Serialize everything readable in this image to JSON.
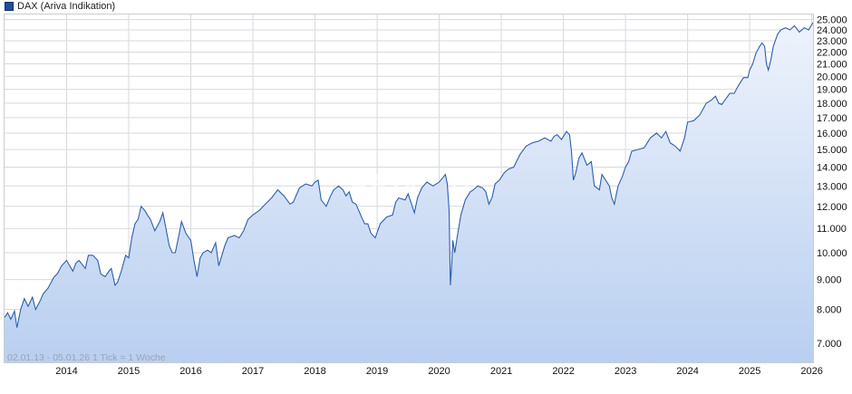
{
  "chart_data": {
    "type": "area",
    "legend": {
      "label": "DAX (Ariva Indikation)",
      "color": "#1f4e9c",
      "position": "top-left"
    },
    "info_text": "02.01.13 - 05.01.26    1 Tick = 1 Woche",
    "watermark": "ARIVA.DE",
    "x_ticks": [
      "2014",
      "2015",
      "2016",
      "2017",
      "2018",
      "2019",
      "2020",
      "2021",
      "2022",
      "2023",
      "2024",
      "2025",
      "2026"
    ],
    "y_ticks": [
      "7.000",
      "8.000",
      "9.000",
      "10.000",
      "11.000",
      "12.000",
      "13.000",
      "14.000",
      "15.000",
      "16.000",
      "17.000",
      "18.000",
      "19.000",
      "20.000",
      "21.000",
      "22.000",
      "23.000",
      "24.000",
      "25.000"
    ],
    "y_scale": "log",
    "ylim": [
      6500,
      25500
    ],
    "xlim": [
      2013.0,
      2026.02
    ],
    "grid": true,
    "colors": {
      "line": "#2d5fae",
      "fill_top": "#eef3fc",
      "fill_bottom": "#b9cff0",
      "grid": "#d6d9de"
    },
    "series": [
      {
        "x": [
          2013.0,
          2013.05,
          2013.1,
          2013.16,
          2013.2,
          2013.26,
          2013.32,
          2013.38,
          2013.45,
          2013.5,
          2013.58,
          2013.62,
          2013.7,
          2013.75,
          2013.8,
          2013.85,
          2013.92,
          2014.0,
          2014.05,
          2014.1,
          2014.15,
          2014.2,
          2014.3,
          2014.35,
          2014.42,
          2014.5,
          2014.55,
          2014.62,
          2014.68,
          2014.72,
          2014.78,
          2014.82,
          2014.88,
          2014.95,
          2015.0,
          2015.05,
          2015.1,
          2015.15,
          2015.2,
          2015.26,
          2015.3,
          2015.35,
          2015.42,
          2015.5,
          2015.55,
          2015.6,
          2015.65,
          2015.7,
          2015.75,
          2015.8,
          2015.85,
          2015.92,
          2016.0,
          2016.05,
          2016.1,
          2016.15,
          2016.2,
          2016.27,
          2016.33,
          2016.4,
          2016.45,
          2016.5,
          2016.55,
          2016.6,
          2016.7,
          2016.78,
          2016.85,
          2016.92,
          2017.0,
          2017.1,
          2017.2,
          2017.3,
          2017.4,
          2017.5,
          2017.6,
          2017.65,
          2017.75,
          2017.85,
          2017.95,
          2018.0,
          2018.05,
          2018.1,
          2018.18,
          2018.25,
          2018.3,
          2018.38,
          2018.45,
          2018.5,
          2018.55,
          2018.6,
          2018.66,
          2018.75,
          2018.8,
          2018.85,
          2018.9,
          2018.97,
          2019.05,
          2019.15,
          2019.25,
          2019.3,
          2019.35,
          2019.45,
          2019.5,
          2019.6,
          2019.65,
          2019.72,
          2019.8,
          2019.9,
          2020.0,
          2020.05,
          2020.1,
          2020.13,
          2020.16,
          2020.18,
          2020.2,
          2020.22,
          2020.25,
          2020.3,
          2020.35,
          2020.42,
          2020.5,
          2020.55,
          2020.62,
          2020.7,
          2020.75,
          2020.8,
          2020.85,
          2020.9,
          2020.97,
          2021.05,
          2021.12,
          2021.2,
          2021.3,
          2021.4,
          2021.5,
          2021.6,
          2021.7,
          2021.8,
          2021.85,
          2021.9,
          2021.97,
          2022.05,
          2022.1,
          2022.13,
          2022.16,
          2022.2,
          2022.25,
          2022.3,
          2022.38,
          2022.45,
          2022.5,
          2022.58,
          2022.62,
          2022.68,
          2022.74,
          2022.78,
          2022.82,
          2022.88,
          2022.95,
          2023.0,
          2023.05,
          2023.1,
          2023.2,
          2023.3,
          2023.4,
          2023.5,
          2023.58,
          2023.65,
          2023.72,
          2023.8,
          2023.88,
          2023.95,
          2024.0,
          2024.1,
          2024.2,
          2024.3,
          2024.38,
          2024.45,
          2024.5,
          2024.55,
          2024.6,
          2024.68,
          2024.75,
          2024.82,
          2024.9,
          2024.97,
          2025.0,
          2025.05,
          2025.1,
          2025.16,
          2025.2,
          2025.24,
          2025.27,
          2025.3,
          2025.34,
          2025.38,
          2025.45,
          2025.5,
          2025.58,
          2025.65,
          2025.72,
          2025.8,
          2025.88,
          2025.95,
          2026.02
        ],
        "y": [
          7750,
          7900,
          7700,
          7950,
          7450,
          8000,
          8350,
          8100,
          8400,
          8000,
          8300,
          8500,
          8700,
          8900,
          9100,
          9200,
          9500,
          9700,
          9500,
          9300,
          9600,
          9700,
          9400,
          9900,
          9900,
          9700,
          9200,
          9100,
          9300,
          9400,
          8800,
          8900,
          9300,
          9900,
          9800,
          10600,
          11200,
          11400,
          12000,
          11800,
          11600,
          11400,
          10900,
          11300,
          11700,
          11000,
          10300,
          10000,
          10000,
          10600,
          11300,
          10800,
          10500,
          9700,
          9100,
          9800,
          10000,
          10100,
          10000,
          10400,
          9500,
          9900,
          10300,
          10600,
          10700,
          10600,
          10900,
          11400,
          11600,
          11800,
          12100,
          12400,
          12800,
          12500,
          12100,
          12200,
          12900,
          13100,
          13000,
          13200,
          13300,
          12300,
          12000,
          12500,
          12800,
          13000,
          12800,
          12500,
          12700,
          12200,
          12100,
          11500,
          11200,
          11200,
          10800,
          10600,
          11200,
          11500,
          11600,
          12200,
          12400,
          12300,
          12600,
          11700,
          12400,
          12900,
          13200,
          13000,
          13200,
          13400,
          13600,
          13100,
          11800,
          8800,
          9500,
          10500,
          10000,
          10800,
          11600,
          12300,
          12700,
          12800,
          13000,
          12900,
          12700,
          12100,
          12400,
          13100,
          13300,
          13700,
          13900,
          14000,
          14700,
          15200,
          15400,
          15500,
          15700,
          15500,
          15800,
          15900,
          15600,
          16100,
          15900,
          14900,
          13300,
          13700,
          14500,
          14800,
          14100,
          14300,
          13000,
          12800,
          13600,
          13300,
          13000,
          12400,
          12100,
          13000,
          13500,
          14000,
          14300,
          14900,
          15000,
          15100,
          15700,
          16000,
          15700,
          16100,
          15400,
          15200,
          14900,
          15700,
          16700,
          16800,
          17200,
          18000,
          18200,
          18500,
          18000,
          17900,
          18200,
          18700,
          18700,
          19300,
          19900,
          19900,
          20500,
          21000,
          21900,
          22500,
          22800,
          22500,
          21000,
          20500,
          21300,
          22500,
          23600,
          24000,
          24200,
          24000,
          24400,
          23800,
          24200,
          24000,
          24700
        ]
      }
    ]
  }
}
